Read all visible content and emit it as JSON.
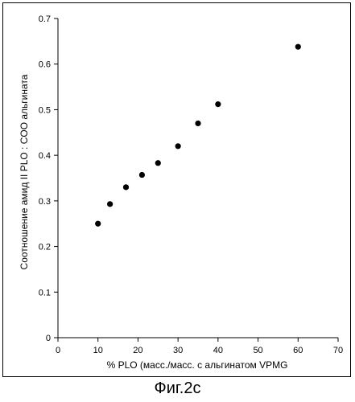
{
  "chart_data": {
    "type": "scatter",
    "title": "",
    "xlabel": "% PLO (масс./масс. с альгинатом VPMG",
    "ylabel": "Соотношение амид II PLO : COO альгината",
    "xlim": [
      0,
      70
    ],
    "ylim": [
      0,
      0.7
    ],
    "x_ticks": [
      "0",
      "10",
      "20",
      "30",
      "40",
      "50",
      "60",
      "70"
    ],
    "y_ticks": [
      "0",
      "0.1",
      "0.2",
      "0.3",
      "0.4",
      "0.5",
      "0.6",
      "0.7"
    ],
    "grid": false,
    "points": [
      {
        "x": 10,
        "y": 0.25
      },
      {
        "x": 13,
        "y": 0.293
      },
      {
        "x": 17,
        "y": 0.33
      },
      {
        "x": 21,
        "y": 0.357
      },
      {
        "x": 25,
        "y": 0.383
      },
      {
        "x": 30,
        "y": 0.42
      },
      {
        "x": 35,
        "y": 0.47
      },
      {
        "x": 40,
        "y": 0.512
      },
      {
        "x": 60,
        "y": 0.638
      }
    ]
  },
  "caption": "Фиг.2с"
}
